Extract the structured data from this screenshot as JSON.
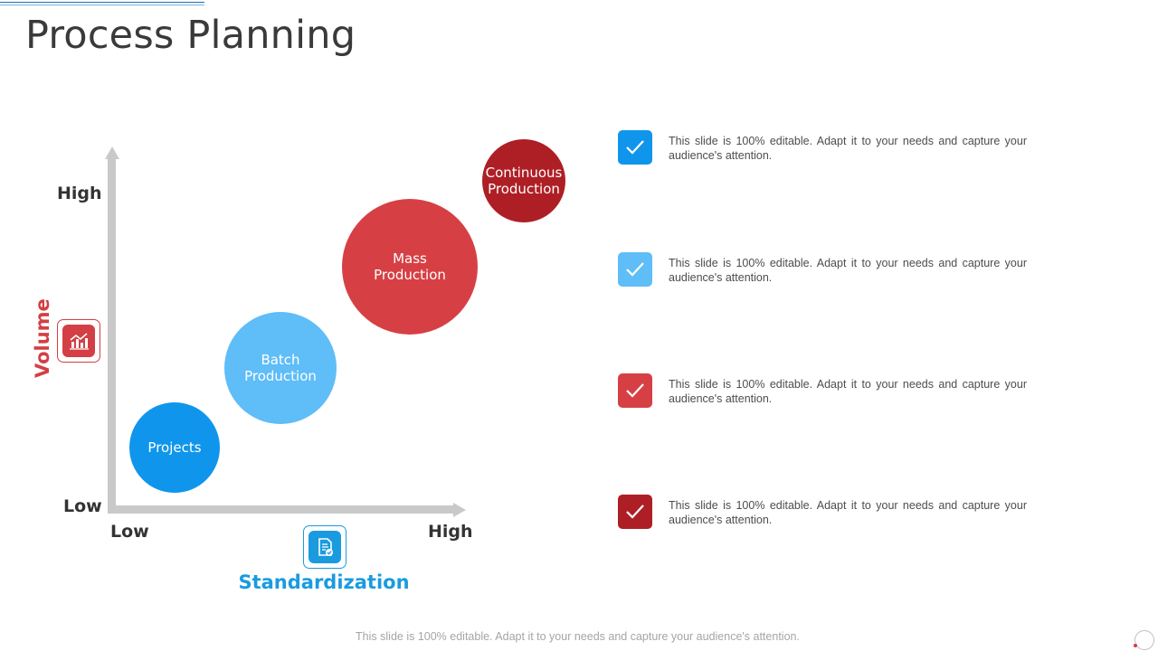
{
  "title": "Process Planning",
  "axes": {
    "y_title": "Volume",
    "y_high": "High",
    "y_low": "Low",
    "x_title": "Standardization",
    "x_low": "Low",
    "x_high": "High",
    "y_icon": "bar-chart-icon",
    "x_icon": "document-check-icon"
  },
  "bubbles": [
    {
      "label": "Projects",
      "color": "#0f96ec"
    },
    {
      "label": "Batch\nProduction",
      "color": "#5fbdf7"
    },
    {
      "label": "Mass\nProduction",
      "color": "#d64045"
    },
    {
      "label": "Continuous\nProduction",
      "color": "#ae1f25"
    }
  ],
  "items": [
    {
      "text": "This slide is 100% editable. Adapt it to your needs and capture your audience's attention.",
      "icon": "checkmark-icon",
      "color": "#0f96ec"
    },
    {
      "text": "This slide is 100% editable. Adapt it to your needs and capture your audience's attention.",
      "icon": "checkmark-icon",
      "color": "#5fbdf7"
    },
    {
      "text": "This slide is 100% editable. Adapt it to your needs and capture your audience's attention.",
      "icon": "checkmark-icon",
      "color": "#d64045"
    },
    {
      "text": "This slide is 100% editable. Adapt it to your needs and capture your audience's attention.",
      "icon": "checkmark-icon",
      "color": "#ae1f25"
    }
  ],
  "footer": "This slide is 100% editable. Adapt it to your needs and capture your audience's attention.",
  "colors": {
    "axis": "#c9c9c9",
    "volume_accent": "#d33f44",
    "standardization_accent": "#1a9be0"
  }
}
